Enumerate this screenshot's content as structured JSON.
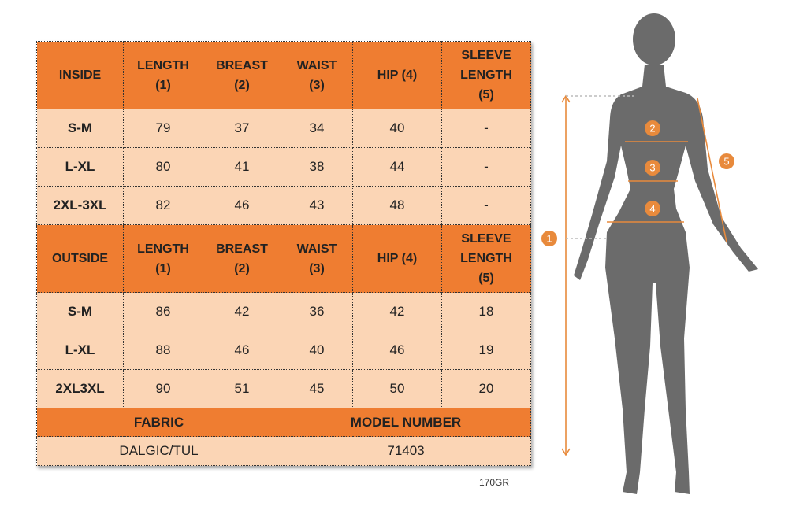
{
  "inside": {
    "header": [
      "INSIDE",
      "LENGTH\n(1)",
      "BREAST\n(2)",
      "WAIST\n(3)",
      "HIP (4)",
      "SLEEVE\nLENGTH\n(5)"
    ],
    "rows": [
      [
        "S-M",
        "79",
        "37",
        "34",
        "40",
        "-"
      ],
      [
        "L-XL",
        "80",
        "41",
        "38",
        "44",
        "-"
      ],
      [
        "2XL-3XL",
        "82",
        "46",
        "43",
        "48",
        "-"
      ]
    ]
  },
  "outside": {
    "header": [
      "OUTSIDE",
      "LENGTH\n(1)",
      "BREAST\n(2)",
      "WAIST\n(3)",
      "HIP (4)",
      "SLEEVE\nLENGTH\n(5)"
    ],
    "rows": [
      [
        "S-M",
        "86",
        "42",
        "36",
        "42",
        "18"
      ],
      [
        "L-XL",
        "88",
        "46",
        "40",
        "46",
        "19"
      ],
      [
        "2XL3XL",
        "90",
        "51",
        "45",
        "50",
        "20"
      ]
    ]
  },
  "footer": {
    "header": [
      "FABRIC",
      "MODEL NUMBER"
    ],
    "values": [
      "DALGIC/TUL",
      "71403"
    ]
  },
  "weight": "170GR",
  "figure": {
    "markers": [
      "1",
      "2",
      "3",
      "4",
      "5"
    ]
  }
}
